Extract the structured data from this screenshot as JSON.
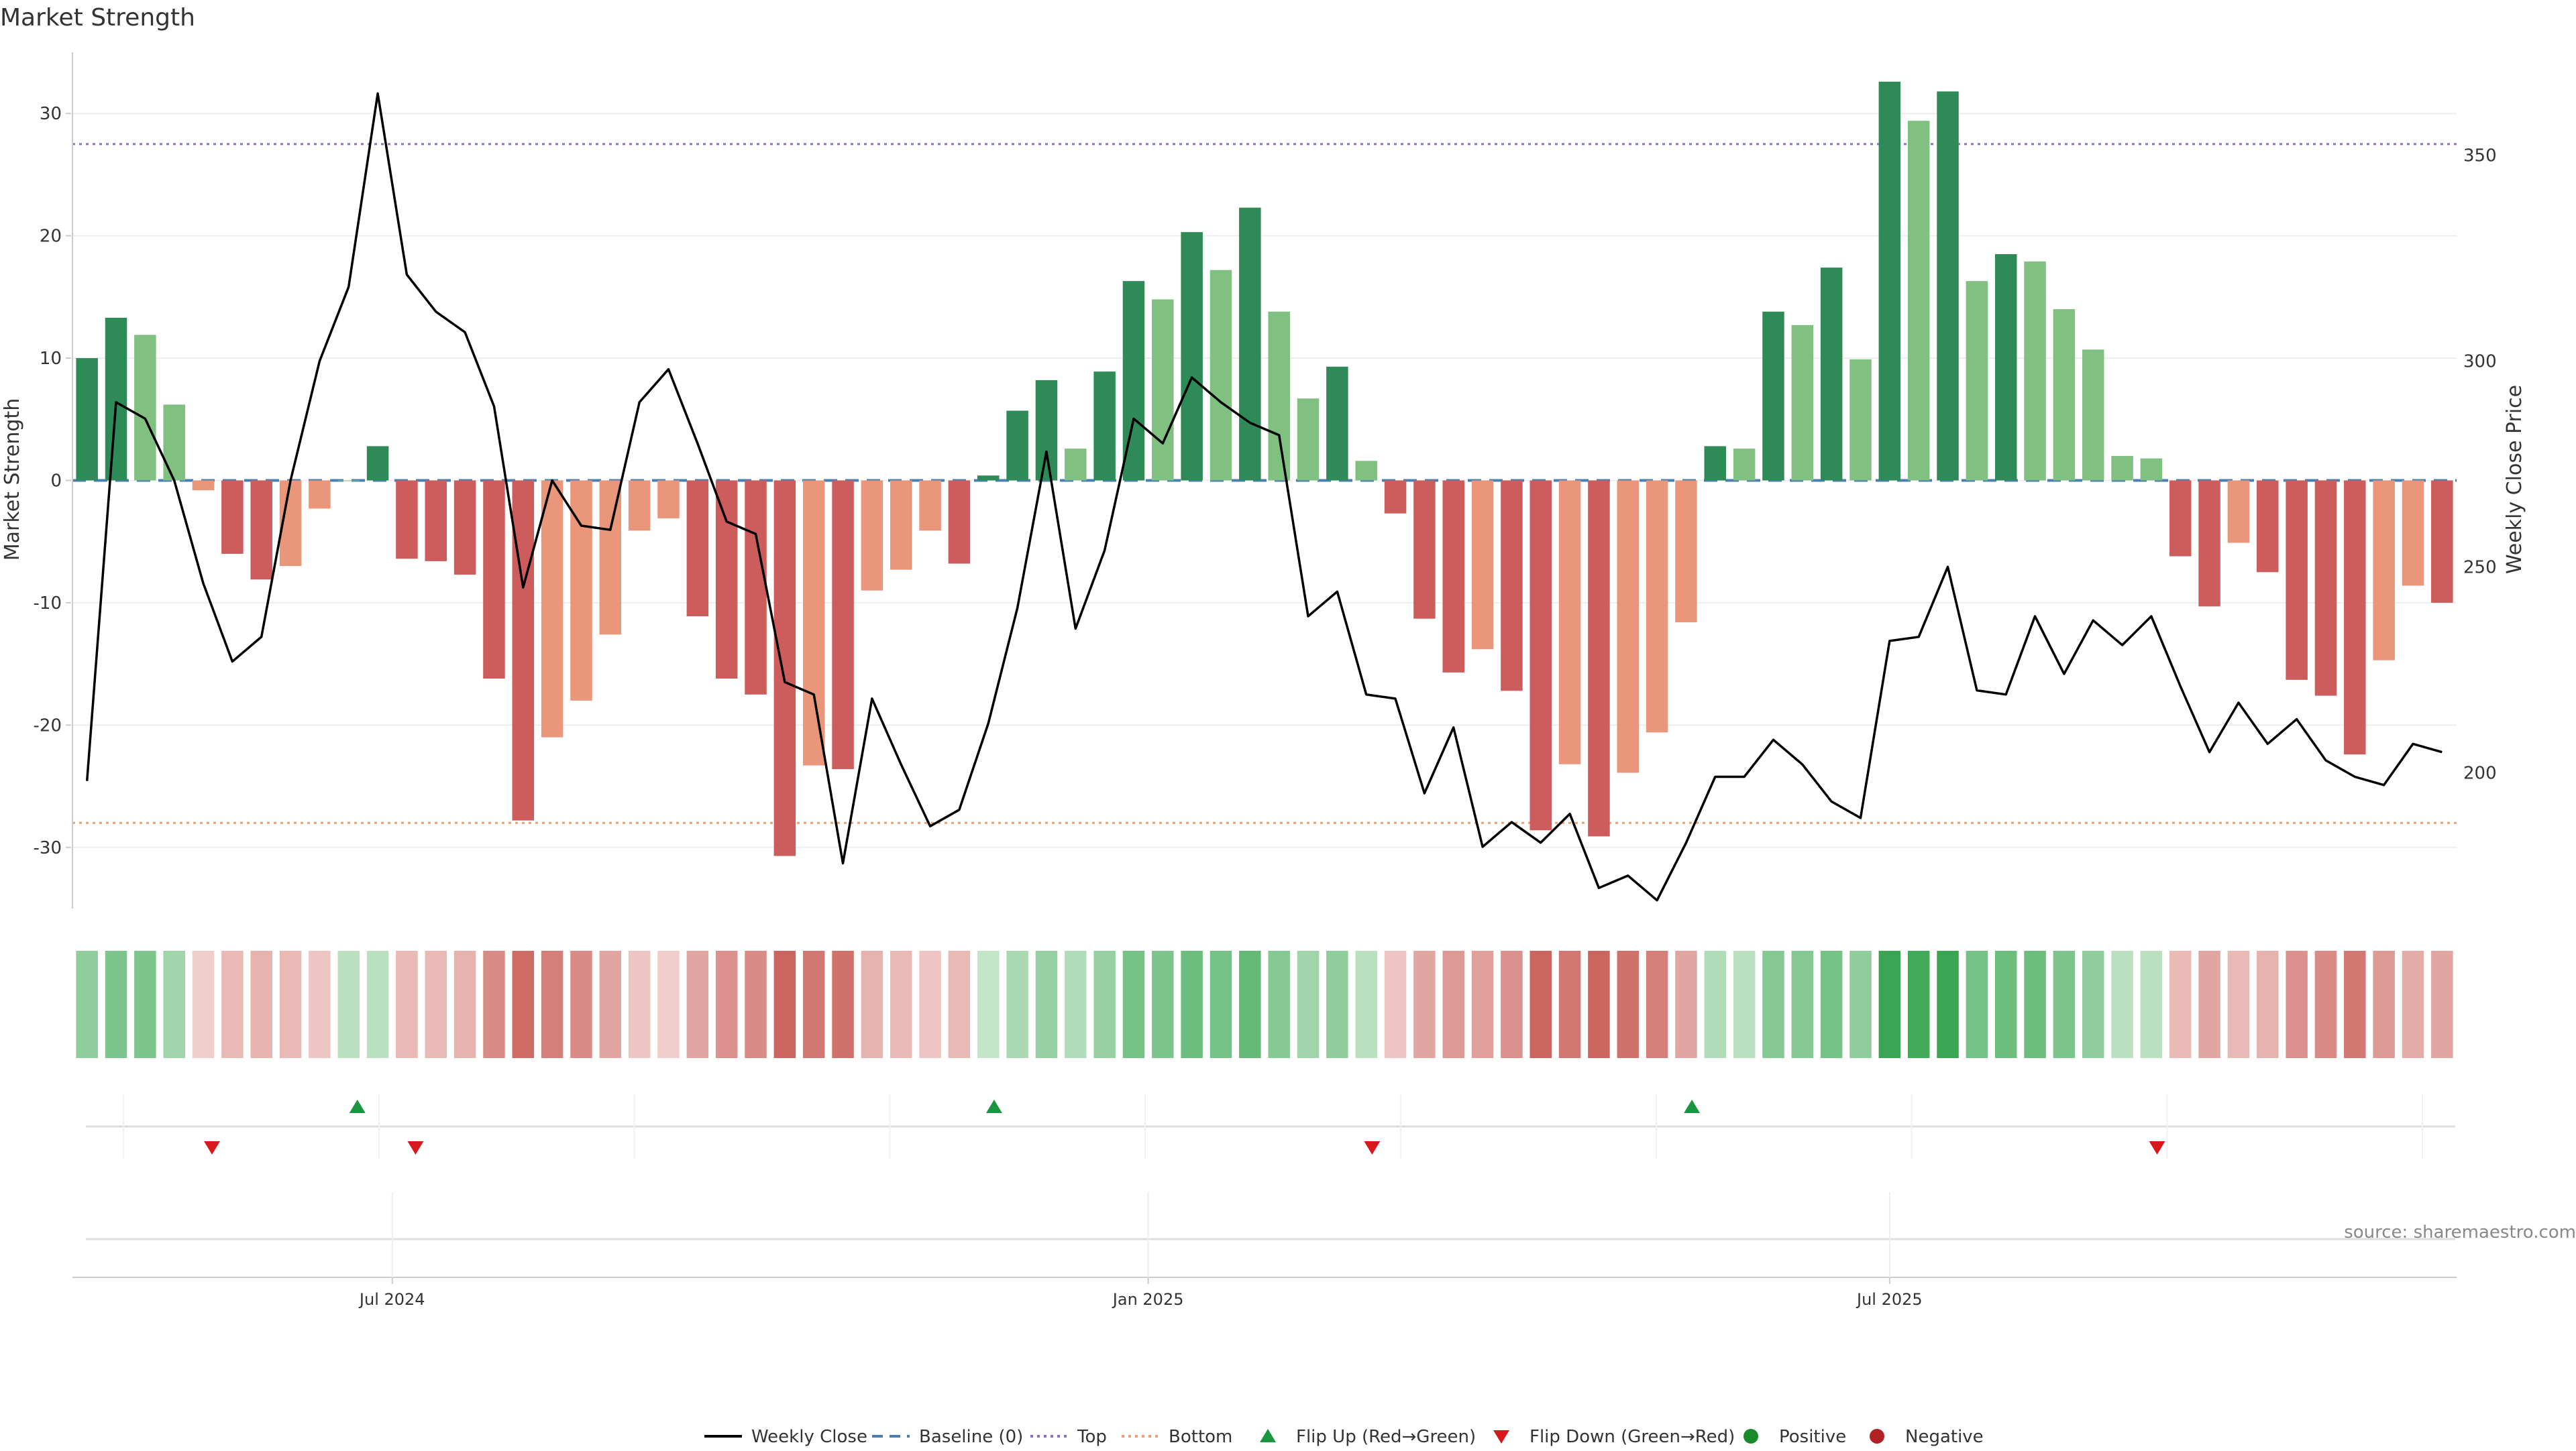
{
  "chart_data": {
    "type": "bar",
    "title": "Market Strength",
    "ylabel_left": "Market Strength",
    "ylabel_right": "Weekly Close Price",
    "source": "source: sharemaestro.com",
    "y_left": {
      "lim": [
        -35,
        35
      ],
      "ticks": [
        -30,
        -20,
        -10,
        0,
        10,
        20,
        30
      ]
    },
    "y_right": {
      "lim": [
        167,
        375
      ],
      "ticks": [
        200,
        250,
        300,
        350
      ]
    },
    "x_ticks": [
      "Jul 2024",
      "Jan 2025",
      "Jul 2025"
    ],
    "x_tick_index": [
      10.5,
      36.5,
      62.0
    ],
    "thresholds": {
      "baseline": 0,
      "top": 27.5,
      "bottom": -28
    },
    "colors": {
      "strong_positive": "#2e8b57",
      "weak_positive": "#80c080",
      "strong_negative": "#cd5c5c",
      "weak_negative": "#e9967a",
      "baseline": "#4a7fb0",
      "top": "#8a70c8",
      "bottom": "#f0a070",
      "price": "#000000",
      "flip_up": "#1a9641",
      "flip_down": "#d7191c",
      "positive_dot": "#1a8a2a",
      "negative_dot": "#b22222"
    },
    "strength": [
      10,
      13.3,
      11.9,
      6.2,
      -0.8,
      -6,
      -8.1,
      -7,
      -2.3,
      0,
      2.8,
      -6.4,
      -6.6,
      -7.7,
      -16.2,
      -27.8,
      -21,
      -18,
      -12.6,
      -4.1,
      -3.1,
      -11.1,
      -16.2,
      -17.5,
      -30.7,
      -23.3,
      -23.6,
      -9,
      -7.3,
      -4.1,
      -6.8,
      0.4,
      5.7,
      8.2,
      2.6,
      8.9,
      16.3,
      14.8,
      20.3,
      17.2,
      22.3,
      13.8,
      6.7,
      9.3,
      1.6,
      -2.7,
      -11.3,
      -15.7,
      -13.8,
      -17.2,
      -28.6,
      -23.2,
      -29.1,
      -23.9,
      -20.6,
      -11.6,
      2.8,
      2.6,
      13.8,
      12.7,
      17.4,
      9.9,
      32.6,
      29.4,
      31.8,
      16.3,
      18.5,
      17.9,
      14,
      10.7,
      2,
      1.8,
      -6.2,
      -10.3,
      -5.1,
      -7.5,
      -16.3,
      -17.6,
      -22.4,
      -14.7,
      -8.6,
      -10
    ],
    "strength_strong": [
      true,
      true,
      false,
      false,
      false,
      true,
      true,
      false,
      false,
      false,
      true,
      true,
      true,
      true,
      true,
      true,
      false,
      false,
      false,
      false,
      false,
      true,
      true,
      true,
      true,
      false,
      true,
      false,
      false,
      false,
      true,
      true,
      true,
      true,
      false,
      true,
      true,
      false,
      true,
      false,
      true,
      false,
      false,
      true,
      false,
      true,
      true,
      true,
      false,
      true,
      true,
      false,
      true,
      false,
      false,
      false,
      true,
      false,
      true,
      false,
      true,
      false,
      true,
      false,
      true,
      false,
      true,
      false,
      false,
      false,
      false,
      false,
      true,
      true,
      false,
      true,
      true,
      true,
      true,
      false,
      false,
      true
    ],
    "weekly_close": [
      198,
      290,
      286,
      271,
      246,
      227,
      233,
      271,
      300,
      318,
      365,
      321,
      312,
      307,
      289,
      245,
      271,
      260,
      259,
      290,
      298,
      280,
      261,
      258,
      222,
      219,
      178,
      218,
      202,
      187,
      191,
      212,
      240,
      278,
      235,
      254,
      286,
      280,
      296,
      290,
      285,
      282,
      238,
      244,
      219,
      218,
      195,
      211,
      182,
      188,
      183,
      190,
      172,
      175,
      169,
      183,
      199,
      199,
      208,
      202,
      193,
      189,
      232,
      233,
      250,
      220,
      219,
      238,
      224,
      237,
      231,
      238,
      221,
      205,
      217,
      207,
      213,
      203,
      199,
      197,
      207,
      205
    ],
    "heat_level": [
      0.5,
      0.6,
      0.6,
      0.4,
      0.15,
      0.3,
      0.35,
      0.3,
      0.2,
      0.25,
      0.25,
      0.3,
      0.3,
      0.35,
      0.65,
      0.9,
      0.75,
      0.65,
      0.45,
      0.2,
      0.15,
      0.45,
      0.6,
      0.65,
      0.95,
      0.8,
      0.85,
      0.35,
      0.3,
      0.2,
      0.3,
      0.2,
      0.35,
      0.45,
      0.3,
      0.45,
      0.65,
      0.6,
      0.7,
      0.65,
      0.75,
      0.55,
      0.4,
      0.5,
      0.25,
      0.2,
      0.45,
      0.55,
      0.5,
      0.6,
      0.95,
      0.8,
      0.95,
      0.85,
      0.75,
      0.45,
      0.3,
      0.25,
      0.55,
      0.55,
      0.65,
      0.5,
      1,
      0.95,
      1,
      0.65,
      0.7,
      0.7,
      0.6,
      0.5,
      0.25,
      0.25,
      0.3,
      0.45,
      0.3,
      0.35,
      0.6,
      0.65,
      0.8,
      0.55,
      0.4,
      0.45
    ],
    "flips_up": [
      9.3,
      31.2,
      55.2
    ],
    "flips_down": [
      4.3,
      11.3,
      44.2,
      71.2
    ],
    "legend": [
      "Weekly Close",
      "Baseline (0)",
      "Top",
      "Bottom",
      "Flip Up (Red→Green)",
      "Flip Down (Green→Red)",
      "Positive",
      "Negative"
    ]
  }
}
